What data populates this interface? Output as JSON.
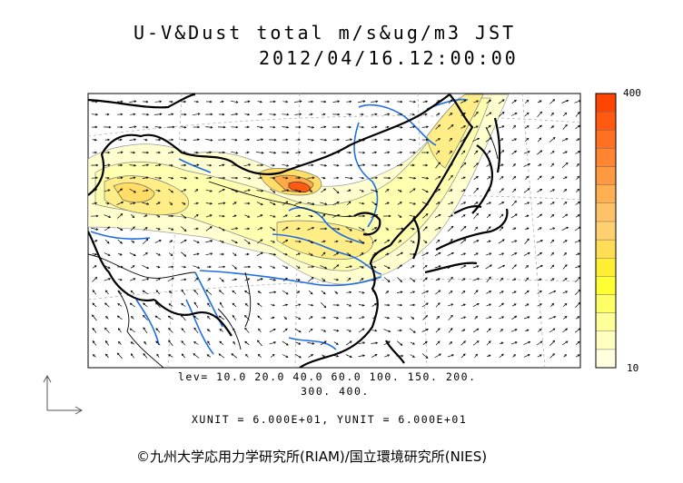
{
  "title": {
    "line1": "U-V&Dust total m/s&ug/m3 JST",
    "line2": "2012/04/16.12:00:00"
  },
  "levels": {
    "line1": "lev= 10.0 20.0 40.0 60.0 100. 150. 200.",
    "line2": "300. 400."
  },
  "units_line": "XUNIT = 6.000E+01, YUNIT = 6.000E+01",
  "copyright": "©九州大学応用力学研究所(RIAM)/国立環境研究所(NIES)",
  "chart_data": {
    "type": "heatmap",
    "title": "U-V&Dust total m/s&ug/m3 JST",
    "subtitle": "2012/04/16.12:00:00",
    "quantity": "Dust total (ug/m3) with U-V wind vectors (m/s)",
    "contour_levels": [
      10,
      20,
      40,
      60,
      100,
      150,
      200,
      300,
      400
    ],
    "colorbar": {
      "min_label": "10",
      "max_label": "400",
      "colors": [
        "#ffffe0",
        "#ffffc0",
        "#ffff99",
        "#ffff66",
        "#ffff33",
        "#ffee33",
        "#ffdd55",
        "#ffd070",
        "#ffc266",
        "#ffb050",
        "#ff9a40",
        "#ff8530",
        "#ff7020",
        "#ff5a10",
        "#ff4500"
      ]
    },
    "vector_units": {
      "xunit": 60.0,
      "yunit": 60.0
    },
    "grid": false
  }
}
